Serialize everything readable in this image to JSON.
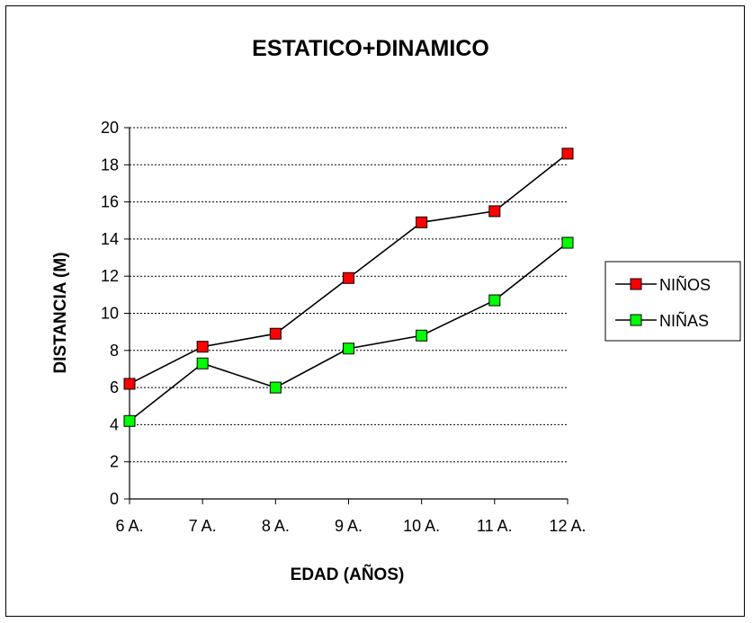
{
  "chart_data": {
    "type": "line",
    "title": "ESTATICO+DINAMICO",
    "xlabel": "EDAD (AÑOS)",
    "ylabel": "DISTANCIA (M)",
    "categories": [
      "6 A.",
      "7 A.",
      "8 A.",
      "9 A.",
      "10 A.",
      "11 A.",
      "12 A."
    ],
    "ylim": [
      0,
      20
    ],
    "yticks": [
      0,
      2,
      4,
      6,
      8,
      10,
      12,
      14,
      16,
      18,
      20
    ],
    "grid": true,
    "legend_position": "right",
    "series": [
      {
        "name": "NIÑOS",
        "color": "#ff0000",
        "values": [
          6.2,
          8.2,
          8.9,
          11.9,
          14.9,
          15.5,
          18.6
        ]
      },
      {
        "name": "NIÑAS",
        "color": "#00ff00",
        "values": [
          4.2,
          7.3,
          6.0,
          8.1,
          8.8,
          10.7,
          13.8
        ]
      }
    ]
  }
}
